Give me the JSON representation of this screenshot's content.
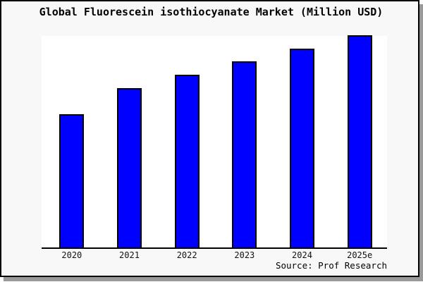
{
  "title": "Global Fluorescein isothiocyanate Market (Million USD)",
  "source_caption": "Source: Prof Research",
  "chart_data": {
    "type": "bar",
    "title": "Global Fluorescein isothiocyanate Market (Million USD)",
    "categories": [
      "2020",
      "2021",
      "2022",
      "2023",
      "2024",
      "2025e"
    ],
    "values": [
      189,
      226,
      245,
      264,
      282,
      301
    ],
    "values_note": "chart displays no y-axis, gridlines or value labels; values are relative bar heights in pixels (2025e tallest = 301)",
    "values_relative_pct_of_max": [
      62.8,
      75.1,
      81.4,
      87.7,
      93.7,
      100
    ],
    "xlabel": "",
    "ylabel": "",
    "legend": "none",
    "grid": false,
    "axis_shown": "bottom only",
    "bar_color": "#0000ff",
    "bar_border_color": "#000000"
  },
  "colors": {
    "card_background": "#f8f8f8",
    "plot_background": "#ffffff",
    "frame": "#000000",
    "shadow": "#999999",
    "bar_fill": "#0000ff",
    "text": "#000000"
  }
}
